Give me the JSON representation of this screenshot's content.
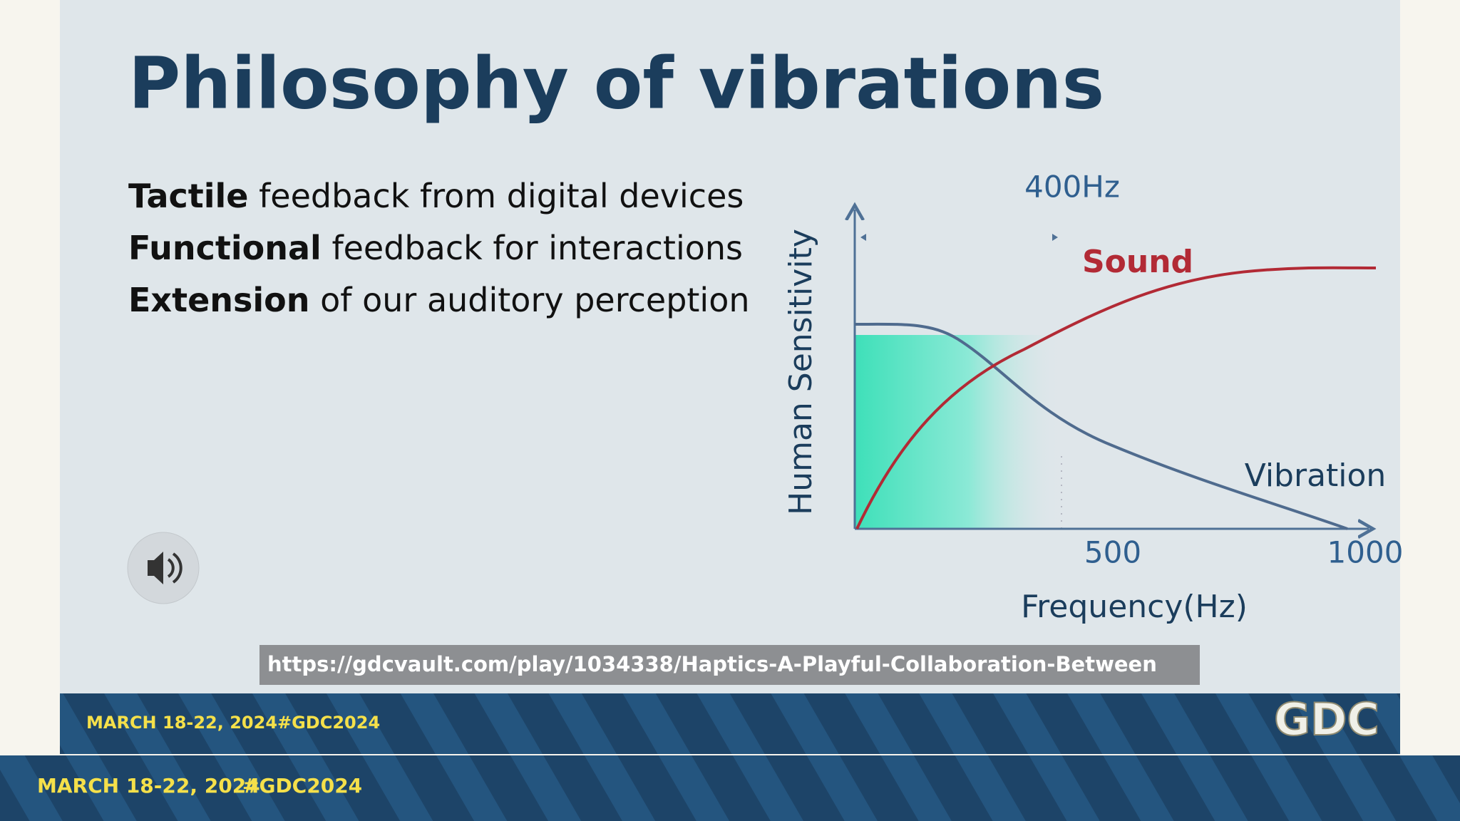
{
  "slide": {
    "title": "Philosophy of vibrations",
    "bullets": [
      {
        "bold": "Tactile",
        "text": "feedback from digital devices"
      },
      {
        "bold": "Functional",
        "text": "feedback for interactions"
      },
      {
        "bold": "Extension",
        "text": "of our auditory perception"
      }
    ]
  },
  "diagram": {
    "y_label": "Human Sensitivity",
    "x_label": "Frequency(Hz)",
    "marker": "400Hz",
    "x_ticks": [
      "500",
      "1000"
    ],
    "sound_label": "Sound",
    "vibration_label": "Vibration"
  },
  "url": "https://gdcvault.com/play/1034338/Haptics-A-Playful-Collaboration-Between",
  "slide_banner": {
    "dates": "MARCH 18-22, 2024",
    "hashtag": "#GDC2024",
    "logo": "GDC"
  },
  "footer": {
    "dates": "MARCH 18-22, 2024",
    "hashtag": "#GDC2024"
  }
}
